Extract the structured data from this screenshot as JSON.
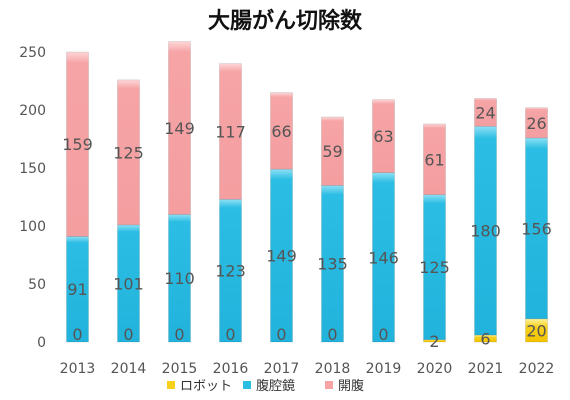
{
  "chart_data": {
    "type": "bar",
    "stacked": true,
    "title": "大腸がん切除数",
    "xlabel": "",
    "ylabel": "",
    "ylim": [
      0,
      250
    ],
    "yticks": [
      0,
      50,
      100,
      150,
      200,
      250
    ],
    "grid": false,
    "legend_position": "bottom",
    "categories": [
      "2013",
      "2014",
      "2015",
      "2016",
      "2017",
      "2018",
      "2019",
      "2020",
      "2021",
      "2022"
    ],
    "series": [
      {
        "name": "ロボット",
        "color": "#f7d01c",
        "values": [
          0,
          0,
          0,
          0,
          0,
          0,
          0,
          2,
          6,
          20
        ]
      },
      {
        "name": "腹腔鏡",
        "color": "#2bbde3",
        "values": [
          91,
          101,
          110,
          123,
          149,
          135,
          146,
          125,
          180,
          156
        ]
      },
      {
        "name": "開腹",
        "color": "#f6a4a6",
        "values": [
          159,
          125,
          149,
          117,
          66,
          59,
          63,
          61,
          24,
          26
        ]
      }
    ]
  }
}
